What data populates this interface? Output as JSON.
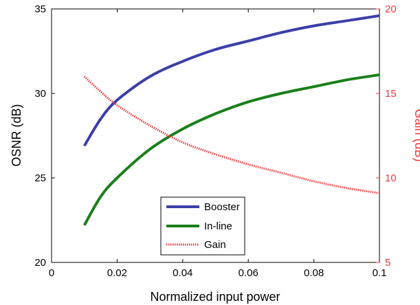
{
  "chart_data": {
    "type": "line",
    "xlabel": "Normalized input power",
    "ylabel": "OSNR (dB)",
    "ylabel_right": "Gain (dB)",
    "xlim": [
      0,
      0.1
    ],
    "ylim": [
      20,
      35
    ],
    "ylim_right": [
      5,
      20
    ],
    "x_ticks": [
      "0",
      "0.02",
      "0.04",
      "0.06",
      "0.08",
      "0.1"
    ],
    "y_ticks": [
      "20",
      "25",
      "30",
      "35"
    ],
    "y_ticks_right": [
      "5",
      "10",
      "15",
      "20"
    ],
    "legend_position": "bottom-center",
    "grid": false,
    "series": [
      {
        "name": "Booster",
        "axis": "left",
        "color": "#3a3fa8",
        "style": "solid",
        "x": [
          0.01,
          0.015,
          0.02,
          0.03,
          0.04,
          0.05,
          0.06,
          0.07,
          0.08,
          0.09,
          0.1
        ],
        "y": [
          26.9,
          28.5,
          29.6,
          31.0,
          31.9,
          32.6,
          33.1,
          33.6,
          34.0,
          34.3,
          34.6
        ]
      },
      {
        "name": "In-line",
        "axis": "left",
        "color": "#1a7f1a",
        "style": "solid",
        "x": [
          0.01,
          0.015,
          0.02,
          0.03,
          0.04,
          0.05,
          0.06,
          0.07,
          0.08,
          0.09,
          0.1
        ],
        "y": [
          22.2,
          23.9,
          25.0,
          26.7,
          27.9,
          28.8,
          29.5,
          30.0,
          30.4,
          30.8,
          31.1
        ]
      },
      {
        "name": "Gain",
        "axis": "right",
        "color": "#e8393c",
        "style": "dotted",
        "x": [
          0.01,
          0.015,
          0.02,
          0.03,
          0.04,
          0.05,
          0.06,
          0.07,
          0.08,
          0.09,
          0.1
        ],
        "y": [
          16.0,
          15.1,
          14.3,
          13.1,
          12.1,
          11.4,
          10.8,
          10.3,
          9.8,
          9.4,
          9.1
        ]
      }
    ]
  }
}
